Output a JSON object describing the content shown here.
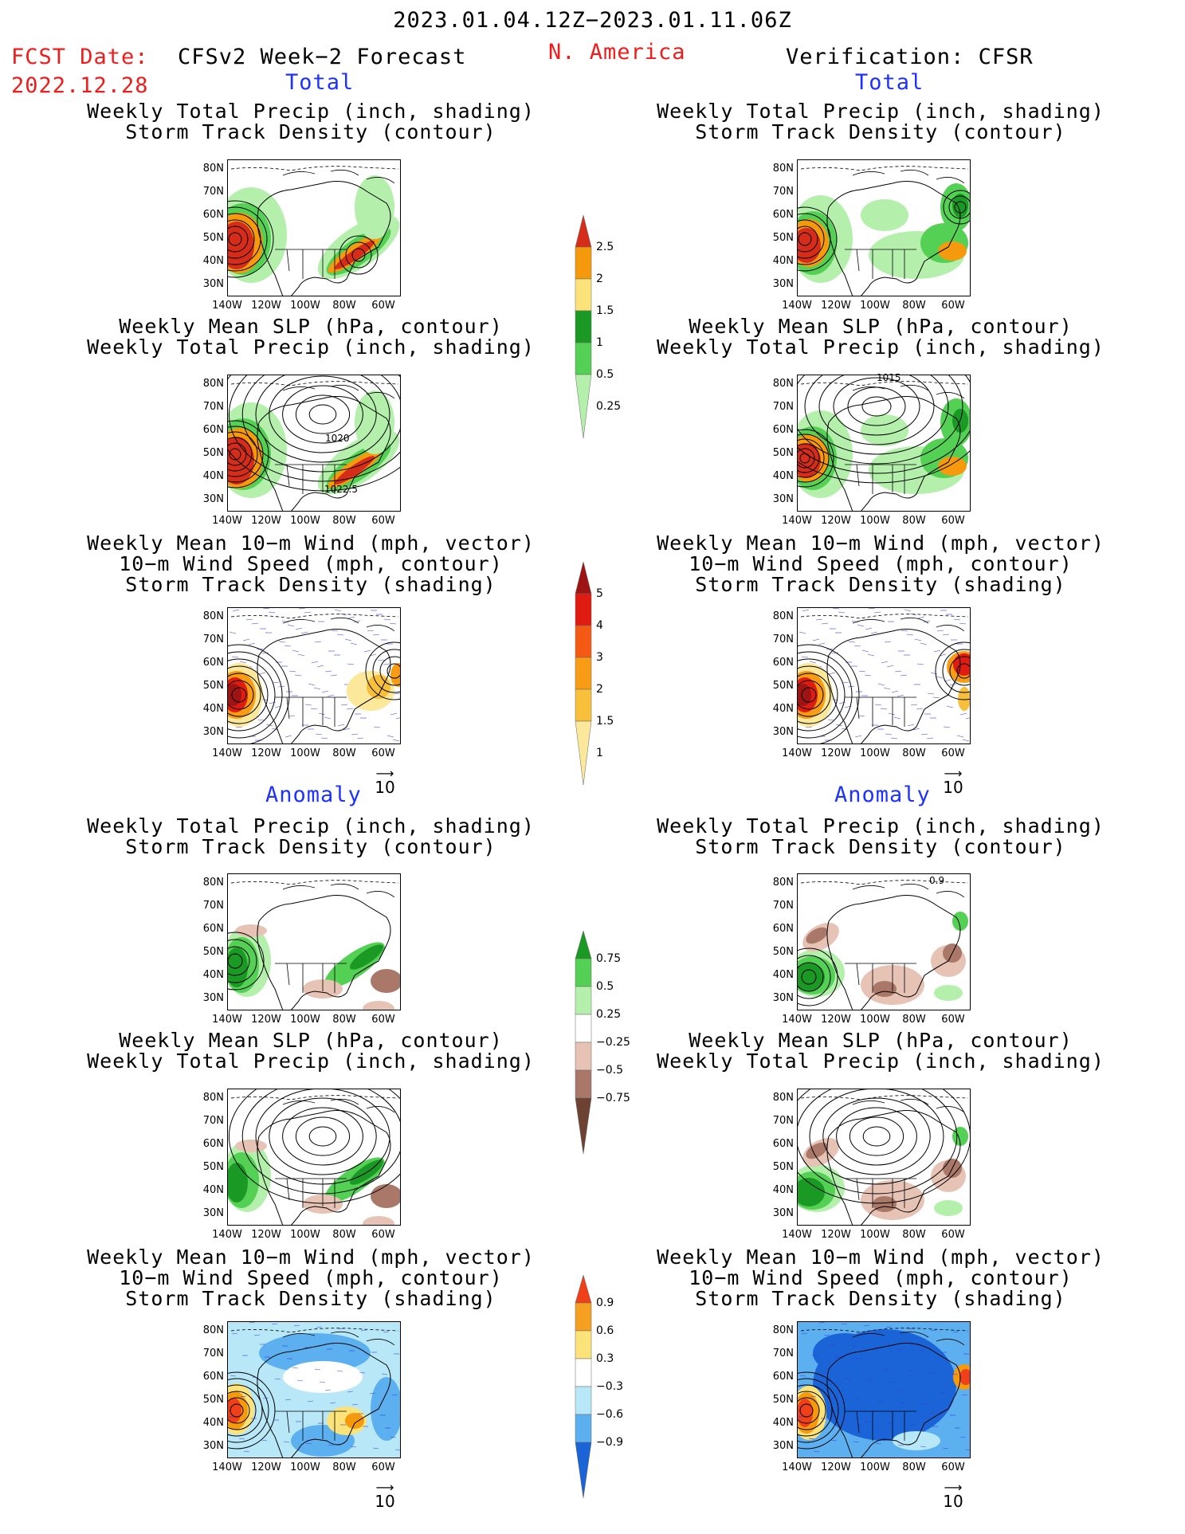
{
  "header": {
    "date_range": "2023.01.04.12Z−2023.01.11.06Z",
    "fcst_label": "FCST Date:",
    "fcst_date": "2022.12.28",
    "left_title": "CFSv2 Week−2 Forecast",
    "region": "N. America",
    "right_title": "Verification: CFSR"
  },
  "sections": {
    "total": "Total",
    "anomaly": "Anomaly"
  },
  "panel_titles": {
    "precip_track": "Weekly Total Precip (inch, shading)\nStorm Track Density (contour)",
    "slp_precip": "Weekly Mean SLP (hPa, contour)\nWeekly Total Precip (inch, shading)",
    "wind_track": "Weekly Mean 10−m Wind (mph, vector)\n10−m Wind Speed (mph, contour)\nStorm Track Density (shading)"
  },
  "axes": {
    "lat_labels": [
      "80N",
      "70N",
      "60N",
      "50N",
      "40N",
      "30N"
    ],
    "lon_labels": [
      "140W",
      "120W",
      "100W",
      "80W",
      "60W"
    ]
  },
  "contour_labels": {
    "fcst_slp_high": "1020",
    "fcst_slp_low": "1022.5",
    "ver_slp": "1015",
    "ver_anom_track": "0.9"
  },
  "vector_reference": "10",
  "colorbars": {
    "precip_total": {
      "labels": [
        "2.5",
        "2",
        "1.5",
        "1",
        "0.5",
        "0.25"
      ],
      "colors": [
        "#d62c1a",
        "#f59a0c",
        "#fbe37a",
        "#1a9a24",
        "#54d154",
        "#b4f0ac"
      ]
    },
    "track_total": {
      "labels": [
        "5",
        "4",
        "3",
        "2",
        "1.5",
        "1"
      ],
      "colors": [
        "#9e1313",
        "#e01c12",
        "#f55a14",
        "#f79c14",
        "#f8c03a",
        "#fbe89a"
      ]
    },
    "precip_anom": {
      "labels": [
        "0.75",
        "0.5",
        "0.25",
        "−0.25",
        "−0.5",
        "−0.75"
      ],
      "colors": [
        "#1a9a24",
        "#54d154",
        "#b4f0ac",
        "#ffffff",
        "#e6c3b4",
        "#a97868",
        "#6e4232"
      ]
    },
    "track_anom": {
      "labels": [
        "0.9",
        "0.6",
        "0.3",
        "−0.3",
        "−0.6",
        "−0.9"
      ],
      "colors": [
        "#f0401a",
        "#f5a020",
        "#fbe37a",
        "#ffffff",
        "#b8e8f8",
        "#5cb0f0",
        "#1a64d8"
      ]
    }
  }
}
